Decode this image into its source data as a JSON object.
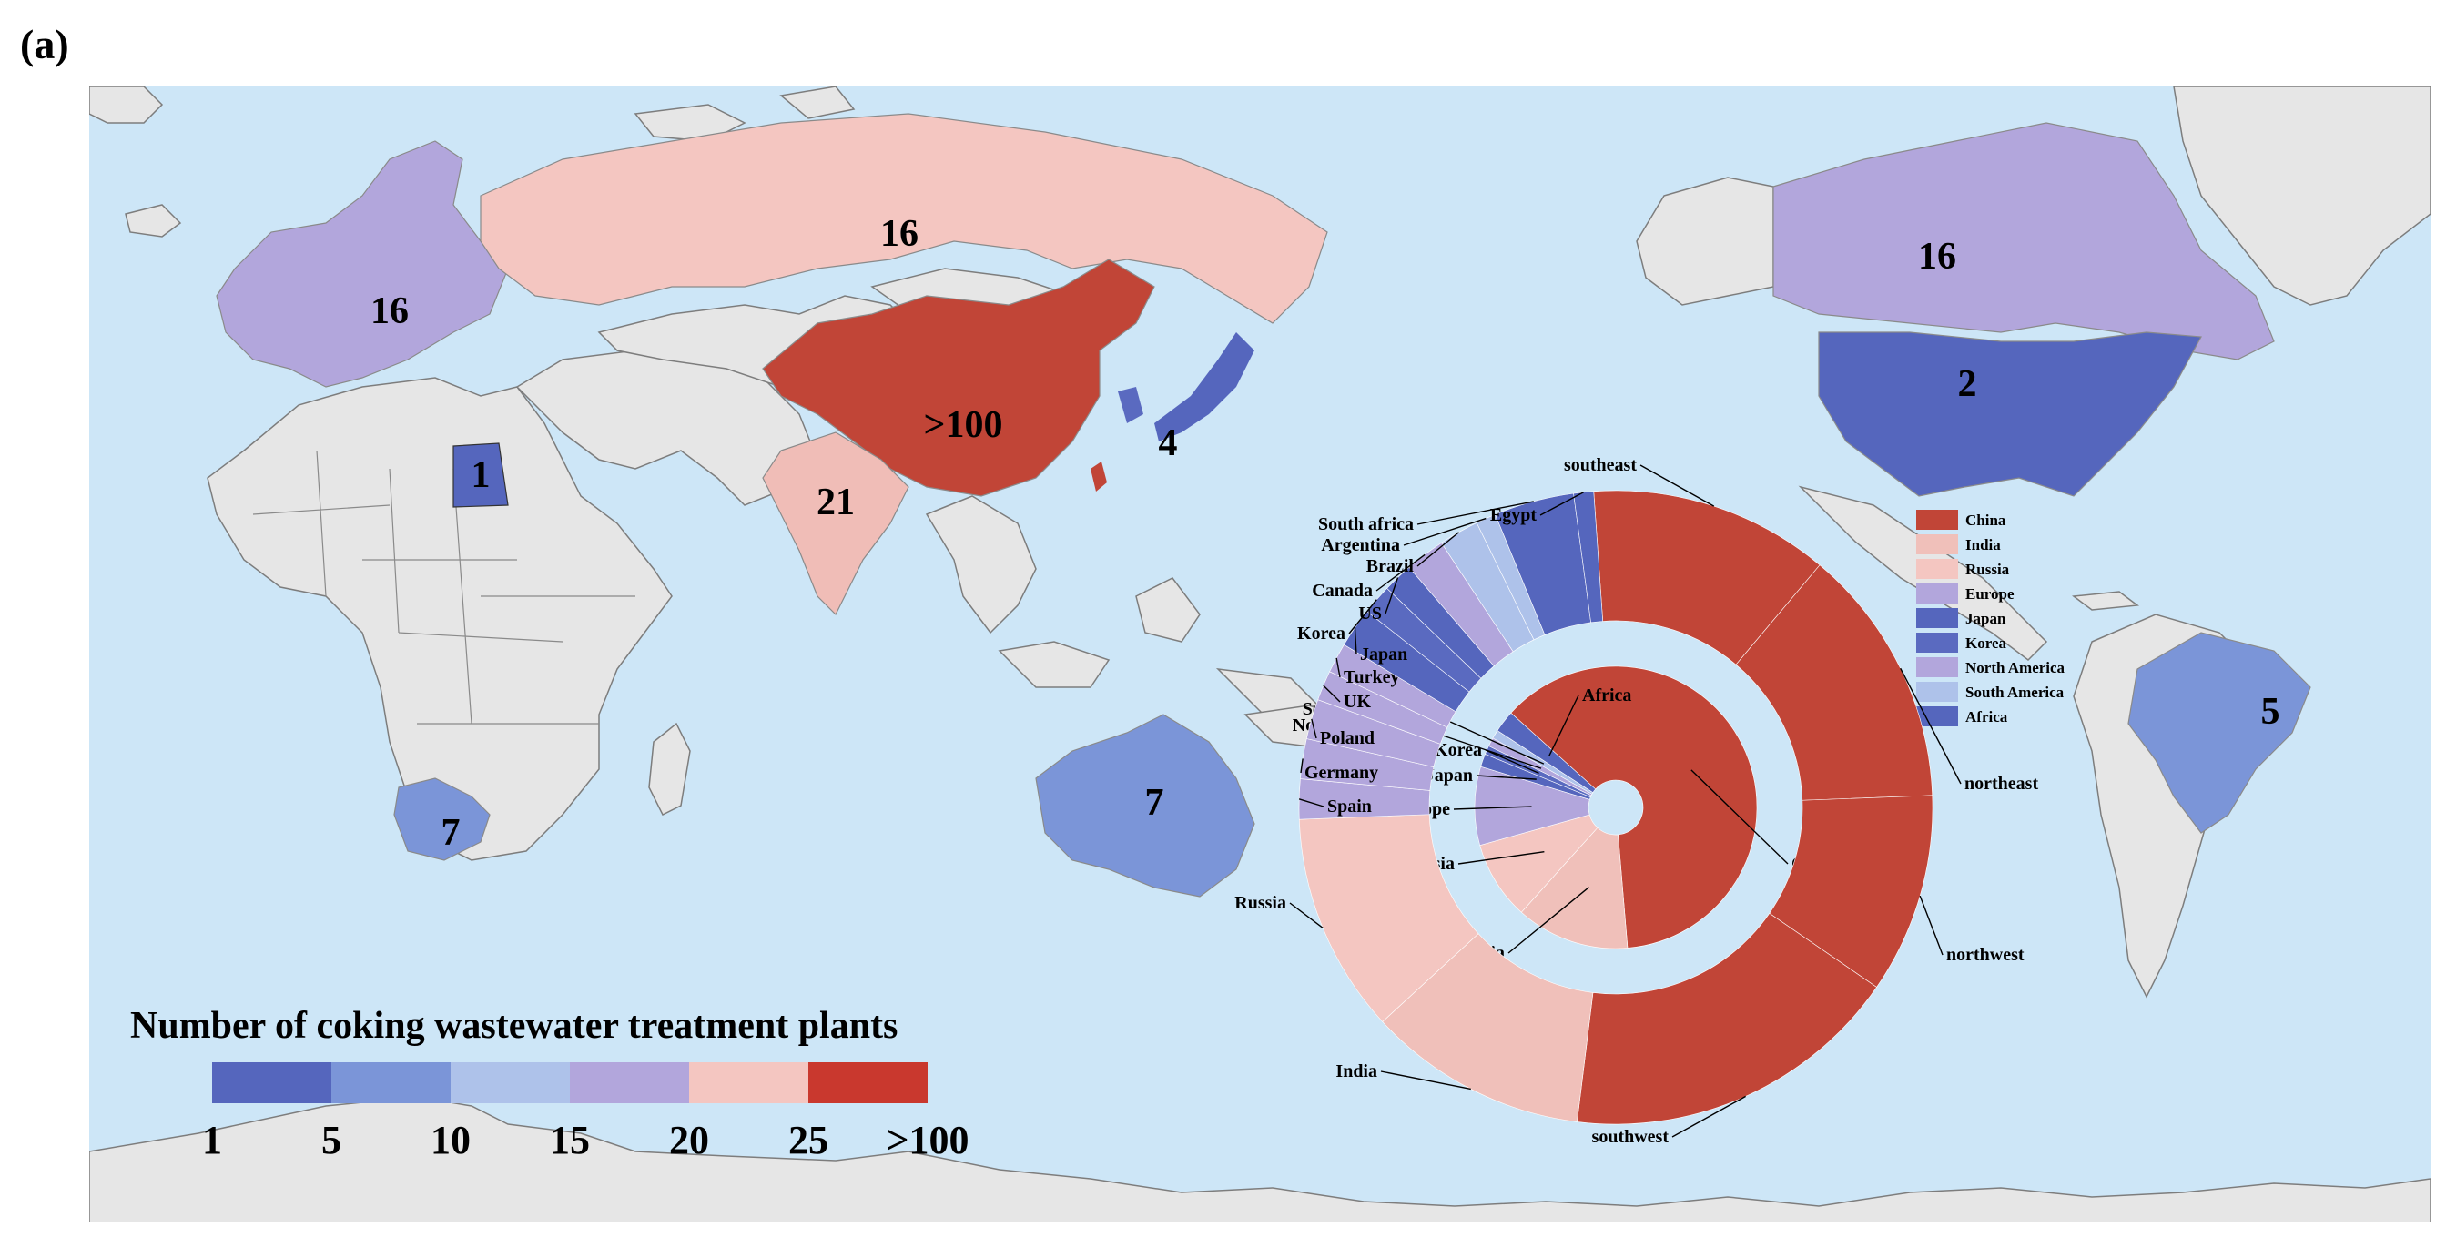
{
  "panel_label": "(a)",
  "colors": {
    "ocean": "#cde6f7",
    "no_data": "#e6e6e6",
    "c1": "#5566bd",
    "c5": "#7b95d8",
    "c10": "#aec2ea",
    "c15": "#b2a6dc",
    "c20": "#f0bdb7",
    "c25": "#f4c6c1",
    "c100": "#c14537"
  },
  "map_labels": {
    "europe": "16",
    "russia": "16",
    "canada": "16",
    "china": ">100",
    "india": "21",
    "egypt": "1",
    "japan": "4",
    "us": "2",
    "south_africa": "7",
    "australia": "7",
    "brazil": "5"
  },
  "colorbar": {
    "title": "Number of coking wastewater treatment plants",
    "ticks": [
      "1",
      "5",
      "10",
      "15",
      "20",
      "25",
      ">100"
    ],
    "colors": [
      "#5566bd",
      "#7b95d8",
      "#aec2ea",
      "#b2a6dc",
      "#f4c6c1",
      "#c9382e"
    ]
  },
  "legend": [
    {
      "label": "China",
      "color": "#c14537"
    },
    {
      "label": "India",
      "color": "#f0c0ba"
    },
    {
      "label": "Russia",
      "color": "#f4c6c1"
    },
    {
      "label": "Europe",
      "color": "#b2a6dc"
    },
    {
      "label": "Japan",
      "color": "#5566bd"
    },
    {
      "label": "Korea",
      "color": "#5a6ac0"
    },
    {
      "label": "North America",
      "color": "#b2a6dc"
    },
    {
      "label": "South America",
      "color": "#aec2ea"
    },
    {
      "label": "Africa",
      "color": "#5566bd"
    }
  ],
  "chart_data": {
    "type": "pie",
    "inner": [
      {
        "label": "China",
        "value": 62,
        "color": "#c14537"
      },
      {
        "label": "India",
        "value": 13,
        "color": "#f0c0ba"
      },
      {
        "label": "Russia",
        "value": 9,
        "color": "#f4c6c1"
      },
      {
        "label": "Europe",
        "value": 9,
        "color": "#b2a6dc"
      },
      {
        "label": "Japan",
        "value": 1.5,
        "color": "#5566bd"
      },
      {
        "label": "Korea",
        "value": 1,
        "color": "#5a6ac0"
      },
      {
        "label": "North America",
        "value": 1,
        "color": "#b2a6dc"
      },
      {
        "label": "South America",
        "value": 1,
        "color": "#aec2ea"
      },
      {
        "label": "Africa",
        "value": 2.5,
        "color": "#5566bd"
      }
    ],
    "outer": [
      {
        "label": "southeast",
        "value": 12,
        "color": "#c14537"
      },
      {
        "label": "northeast",
        "value": 13,
        "color": "#c14537"
      },
      {
        "label": "northwest",
        "value": 10,
        "color": "#c14537"
      },
      {
        "label": "southwest",
        "value": 17,
        "color": "#c14537"
      },
      {
        "label": "India",
        "value": 11,
        "color": "#f0c0ba"
      },
      {
        "label": "Russia",
        "value": 11,
        "color": "#f4c6c1"
      },
      {
        "label": "Spain",
        "value": 2,
        "color": "#b2a6dc"
      },
      {
        "label": "Germany",
        "value": 2,
        "color": "#b2a6dc"
      },
      {
        "label": "Poland",
        "value": 2,
        "color": "#b2a6dc"
      },
      {
        "label": "UK",
        "value": 1.5,
        "color": "#b2a6dc"
      },
      {
        "label": "Turkey",
        "value": 1.5,
        "color": "#b2a6dc"
      },
      {
        "label": "Japan",
        "value": 2,
        "color": "#5566bd"
      },
      {
        "label": "Korea",
        "value": 1.5,
        "color": "#5a6ac0"
      },
      {
        "label": "US",
        "value": 1.5,
        "color": "#5566bd"
      },
      {
        "label": "Canada",
        "value": 2,
        "color": "#b2a6dc"
      },
      {
        "label": "Brazil",
        "value": 2,
        "color": "#aec2ea"
      },
      {
        "label": "Argentina",
        "value": 1,
        "color": "#aec2ea"
      },
      {
        "label": "South africa",
        "value": 4,
        "color": "#5566bd"
      },
      {
        "label": "Egypt",
        "value": 1,
        "color": "#5566bd"
      }
    ]
  }
}
